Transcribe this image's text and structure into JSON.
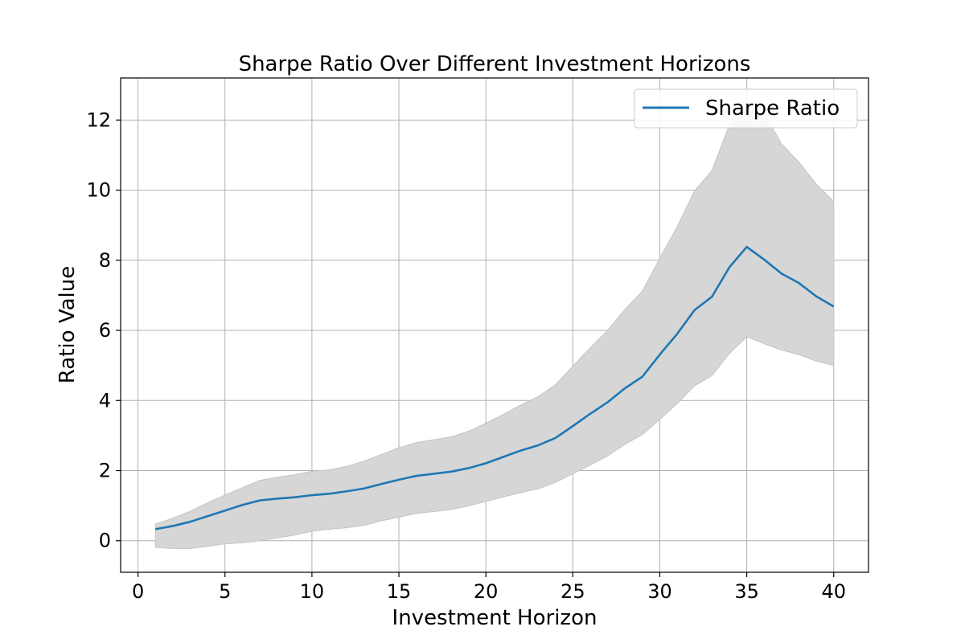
{
  "chart_data": {
    "type": "line",
    "title": "Sharpe Ratio Over Different Investment Horizons",
    "xlabel": "Investment Horizon",
    "ylabel": "Ratio Value",
    "xlim": [
      -1,
      42
    ],
    "ylim": [
      -0.9,
      13.2
    ],
    "xticks": [
      0,
      5,
      10,
      15,
      20,
      25,
      30,
      35,
      40
    ],
    "yticks": [
      0,
      2,
      4,
      6,
      8,
      10,
      12
    ],
    "grid": true,
    "legend_position": "top-right",
    "x": [
      1,
      2,
      3,
      4,
      5,
      6,
      7,
      8,
      9,
      10,
      11,
      12,
      13,
      14,
      15,
      16,
      17,
      18,
      19,
      20,
      21,
      22,
      23,
      24,
      25,
      26,
      27,
      28,
      29,
      30,
      31,
      32,
      33,
      34,
      35,
      36,
      37,
      38,
      39,
      40
    ],
    "series": [
      {
        "name": "Sharpe Ratio",
        "color": "#1f77b4",
        "values": [
          0.33,
          0.42,
          0.54,
          0.7,
          0.86,
          1.02,
          1.15,
          1.2,
          1.24,
          1.3,
          1.34,
          1.41,
          1.49,
          1.62,
          1.74,
          1.85,
          1.91,
          1.97,
          2.07,
          2.21,
          2.39,
          2.57,
          2.72,
          2.93,
          3.27,
          3.62,
          3.95,
          4.35,
          4.68,
          5.31,
          5.9,
          6.58,
          6.96,
          7.8,
          8.38,
          8.02,
          7.62,
          7.35,
          6.97,
          6.68
        ],
        "band_upper": [
          0.48,
          0.64,
          0.84,
          1.08,
          1.3,
          1.51,
          1.72,
          1.81,
          1.88,
          1.98,
          2.02,
          2.12,
          2.27,
          2.46,
          2.65,
          2.8,
          2.88,
          2.96,
          3.12,
          3.35,
          3.6,
          3.87,
          4.11,
          4.45,
          4.98,
          5.5,
          6.0,
          6.6,
          7.12,
          8.06,
          8.96,
          9.98,
          10.56,
          11.86,
          12.3,
          12.2,
          11.32,
          10.8,
          10.17,
          9.68
        ],
        "band_lower": [
          -0.19,
          -0.22,
          -0.22,
          -0.16,
          -0.09,
          -0.06,
          0.0,
          0.08,
          0.16,
          0.27,
          0.33,
          0.37,
          0.44,
          0.57,
          0.67,
          0.78,
          0.83,
          0.89,
          0.99,
          1.12,
          1.25,
          1.37,
          1.48,
          1.66,
          1.91,
          2.16,
          2.42,
          2.75,
          3.03,
          3.46,
          3.91,
          4.42,
          4.71,
          5.34,
          5.82,
          5.62,
          5.44,
          5.31,
          5.12,
          5.0
        ],
        "band_color": "#d6d6d6"
      }
    ]
  }
}
